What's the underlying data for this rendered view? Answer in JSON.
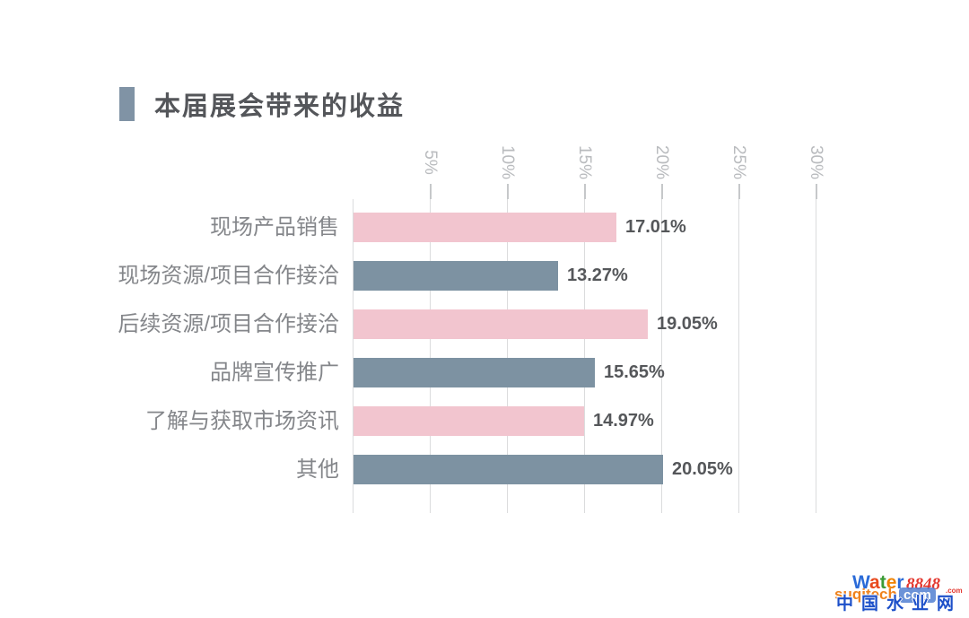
{
  "title": {
    "text": "本届展会带来的收益"
  },
  "chart_data": {
    "type": "bar",
    "orientation": "horizontal",
    "title": "本届展会带来的收益",
    "categories": [
      "现场产品销售",
      "现场资源/项目合作接洽",
      "后续资源/项目合作接洽",
      "品牌宣传推广",
      "了解与获取市场资讯",
      "其他"
    ],
    "values": [
      17.01,
      13.27,
      19.05,
      15.65,
      14.97,
      20.05
    ],
    "value_labels": [
      "17.01%",
      "13.27%",
      "19.05%",
      "15.65%",
      "14.97%",
      "20.05%"
    ],
    "x_ticks": [
      "5%",
      "10%",
      "15%",
      "20%",
      "25%",
      "30%"
    ],
    "xlim": [
      0,
      30
    ],
    "grid": true,
    "tick_label_rotation_deg": 90,
    "bar_colors": [
      "#f2c5cf",
      "#7d92a2",
      "#f2c5cf",
      "#7d92a2",
      "#f2c5cf",
      "#7d92a2"
    ],
    "legend": "none"
  },
  "colors": {
    "pink": "#f2c5cf",
    "slate": "#7d92a2",
    "gridline": "#dbdcdd",
    "tick_label": "#b9bbbe",
    "category_label": "#84868a",
    "value_label": "#55575a",
    "title_text": "#54565a",
    "title_marker": "#8093a5"
  },
  "watermark": {
    "water_letters": [
      [
        "W",
        "#2b6bd8"
      ],
      [
        "a",
        "#e8491d"
      ],
      [
        "t",
        "#3a9b35"
      ],
      [
        "e",
        "#f08300"
      ],
      [
        "r",
        "#2b6bd8"
      ]
    ],
    "num": "8848",
    "com_small": ".com",
    "suqitech": "suqitech",
    "com_badge": "com",
    "cn": "中国水业网"
  }
}
